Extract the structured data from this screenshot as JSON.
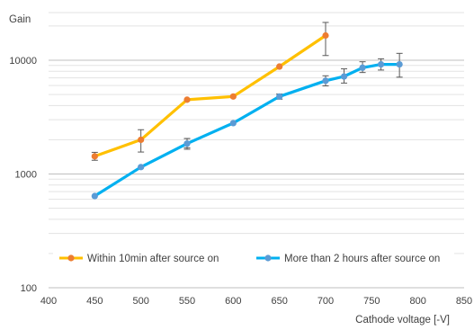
{
  "chart_data": {
    "type": "line",
    "xlabel": "Cathode voltage [-V]",
    "ylabel": "Gain",
    "xlim": [
      400,
      850
    ],
    "x_ticks": [
      "400",
      "450",
      "500",
      "550",
      "600",
      "650",
      "700",
      "750",
      "800",
      "850"
    ],
    "y_scale": "log",
    "ylim": [
      100,
      20000
    ],
    "y_ticks": [
      "100",
      "1000",
      "10000"
    ],
    "grid": "horizontal, major and minor",
    "legend_position": "bottom, inside plot",
    "series": [
      {
        "name": "Within 10min after source on",
        "color": "#FFC000",
        "marker_color": "#ED7D31",
        "x": [
          450,
          500,
          550,
          600,
          650,
          700
        ],
        "y": [
          1430,
          2000,
          4500,
          4800,
          8800,
          16500
        ],
        "err_low": [
          1320,
          1560,
          1700,
          null,
          null,
          11000
        ],
        "err_high": [
          1550,
          2450,
          2050,
          null,
          null,
          21500
        ]
      },
      {
        "name": "More than 2 hours after source on",
        "color": "#00B0F0",
        "marker_color": "#5B9BD5",
        "x": [
          450,
          500,
          550,
          600,
          650,
          700,
          720,
          740,
          760,
          780
        ],
        "y": [
          640,
          1150,
          1850,
          2800,
          4800,
          6600,
          7200,
          8600,
          9200,
          9200
        ],
        "err_low": [
          null,
          null,
          1650,
          null,
          4550,
          5950,
          6300,
          7800,
          8200,
          7100
        ],
        "err_high": [
          null,
          null,
          2050,
          null,
          5050,
          7300,
          8400,
          9700,
          10300,
          11500
        ]
      }
    ]
  }
}
